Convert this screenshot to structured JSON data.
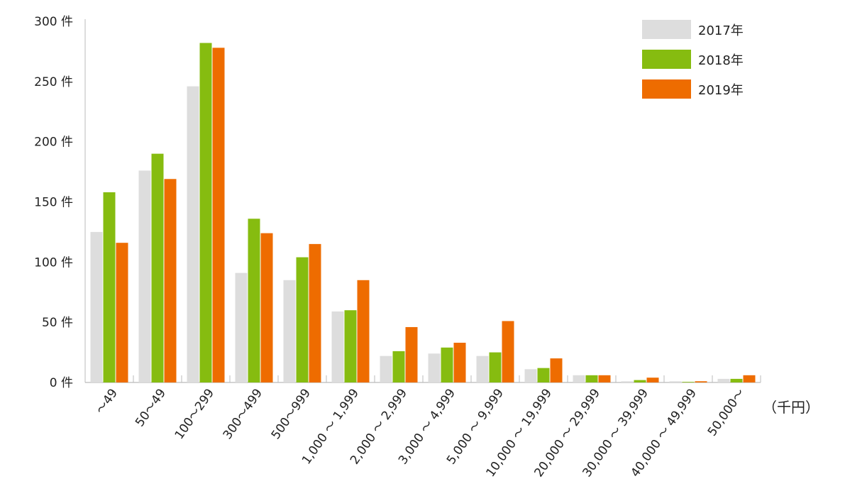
{
  "chart_data": {
    "type": "bar",
    "ylim": [
      0,
      300
    ],
    "y_ticks": [
      0,
      50,
      100,
      150,
      200,
      250,
      300
    ],
    "y_tick_suffix": " 件",
    "x_unit_label": "（千円）",
    "grid": false,
    "legend_position": "top-right",
    "categories": [
      "～49",
      "50～49",
      "100～299",
      "300～499",
      "500～999",
      "1,000 ～ 1,999",
      "2,000 ～ 2,999",
      "3,000 ～ 4,999",
      "5,000 ～ 9,999",
      "10,000 ～ 19,999",
      "20,000 ～ 29,999",
      "30,000 ～ 39,999",
      "40,000 ～ 49,999",
      "50,000～"
    ],
    "series": [
      {
        "name": "2017年",
        "color": "#dddddd",
        "values": [
          125,
          176,
          246,
          91,
          85,
          59,
          22,
          24,
          22,
          11,
          6,
          1,
          1,
          3
        ]
      },
      {
        "name": "2018年",
        "color": "#86bc10",
        "values": [
          158,
          190,
          282,
          136,
          104,
          60,
          26,
          29,
          25,
          12,
          6,
          2,
          0.5,
          3
        ]
      },
      {
        "name": "2019年",
        "color": "#ee6c00",
        "values": [
          116,
          169,
          278,
          124,
          115,
          85,
          46,
          33,
          51,
          20,
          6,
          4,
          1,
          6
        ]
      }
    ]
  }
}
